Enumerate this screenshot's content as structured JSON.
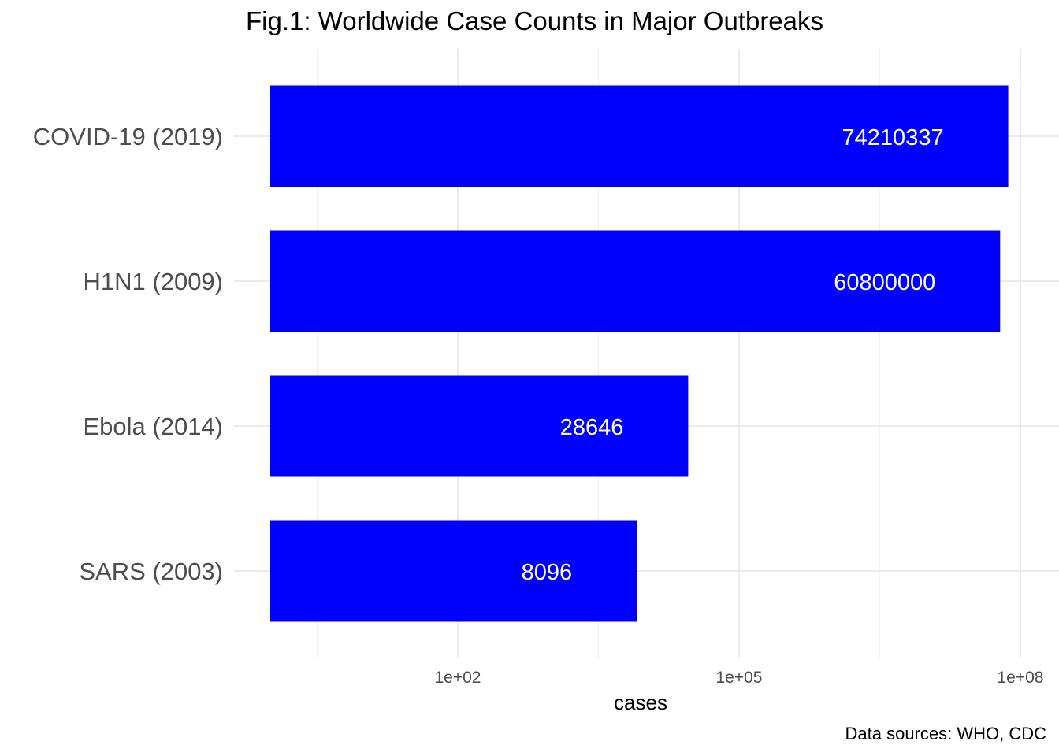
{
  "chart_data": {
    "type": "bar",
    "orientation": "horizontal",
    "title": "Fig.1: Worldwide Case Counts in Major Outbreaks",
    "caption": "Data sources: WHO, CDC",
    "xlabel": "cases",
    "ylabel": "",
    "x_scale": "log10",
    "xlim": [
      1,
      100000000
    ],
    "x_ticks": [
      {
        "value": 100,
        "label": "1e+02"
      },
      {
        "value": 100000,
        "label": "1e+05"
      },
      {
        "value": 100000000,
        "label": "1e+08"
      }
    ],
    "categories": [
      "COVID-19 (2019)",
      "H1N1 (2009)",
      "Ebola (2014)",
      "SARS (2003)"
    ],
    "values": [
      74210337,
      60800000,
      28646,
      8096
    ],
    "data_labels": [
      "74210337",
      "60800000",
      "28646",
      "8096"
    ],
    "bar_color": "#0000ff",
    "label_color": "#ffffff",
    "grid": true,
    "legend": "none"
  }
}
